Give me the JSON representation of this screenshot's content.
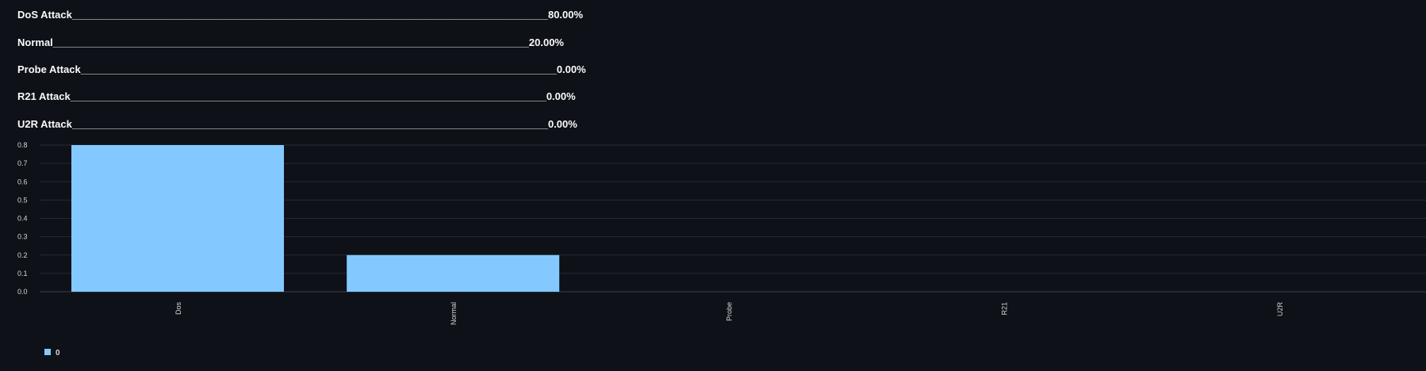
{
  "results": [
    {
      "label": "DoS Attack",
      "filler": "___________________________________________________________________________________",
      "value": "80.00%"
    },
    {
      "label": "Normal",
      "filler": "___________________________________________________________________________________",
      "value": "20.00%"
    },
    {
      "label": "Probe Attack",
      "filler": "___________________________________________________________________________________",
      "value": "0.00%"
    },
    {
      "label": "R21 Attack",
      "filler": "___________________________________________________________________________________",
      "value": "0.00%"
    },
    {
      "label": "U2R Attack",
      "filler": "___________________________________________________________________________________",
      "value": "0.00%"
    }
  ],
  "chart_data": {
    "type": "bar",
    "categories": [
      "Dos",
      "Normal",
      "Probe",
      "R21",
      "U2R"
    ],
    "series": [
      {
        "name": "0",
        "values": [
          0.8,
          0.2,
          0,
          0,
          0
        ],
        "color": "#83c9ff"
      }
    ],
    "ylim": [
      0,
      0.8
    ],
    "yticks": [
      "0.0",
      "0.1",
      "0.2",
      "0.3",
      "0.4",
      "0.5",
      "0.6",
      "0.7",
      "0.8"
    ],
    "grid": true,
    "legend_position": "bottom-left",
    "title": "",
    "xlabel": "",
    "ylabel": ""
  }
}
